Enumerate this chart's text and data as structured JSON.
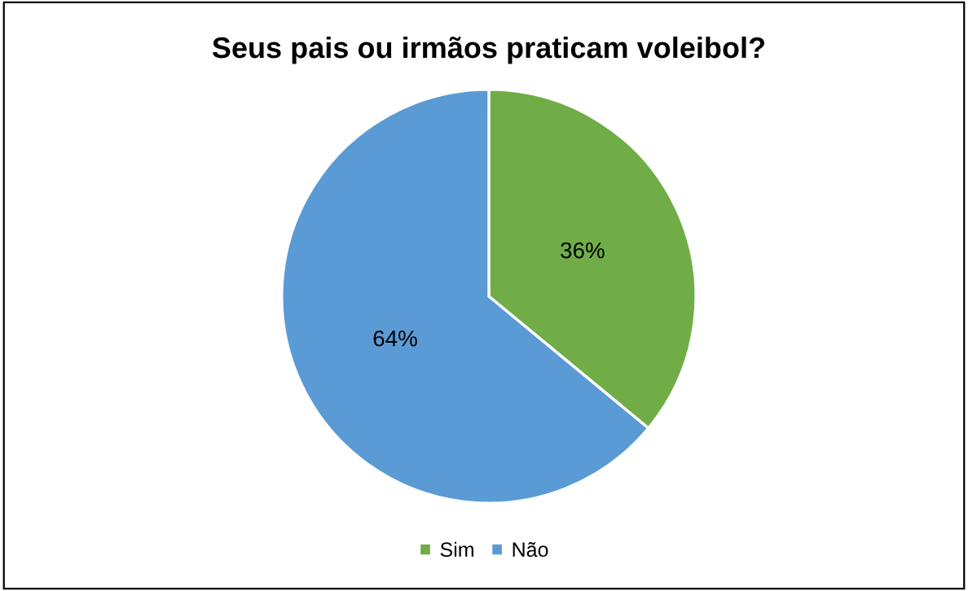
{
  "chart_data": {
    "type": "pie",
    "title": "Seus pais ou irmãos praticam voleibol?",
    "categories": [
      "Sim",
      "Não"
    ],
    "values": [
      36,
      64
    ],
    "colors": [
      "#70ad47",
      "#5b9bd5"
    ],
    "value_labels": [
      "36%",
      "64%"
    ],
    "legend": "bottom"
  }
}
